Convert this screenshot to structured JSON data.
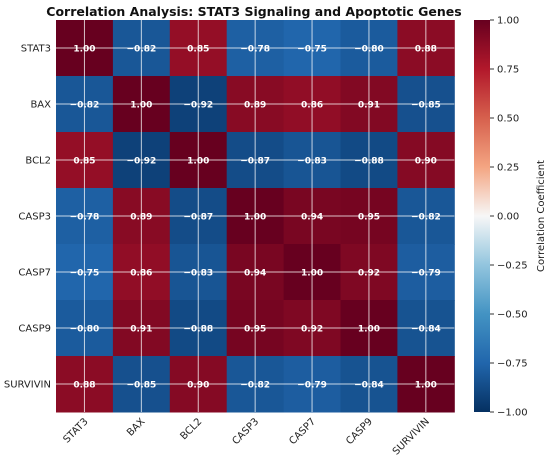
{
  "chart_data": {
    "type": "heatmap",
    "title": "Correlation Analysis: STAT3 Signaling and Apoptotic Genes",
    "rows": [
      "STAT3",
      "BAX",
      "BCL2",
      "CASP3",
      "CASP7",
      "CASP9",
      "SURVIVIN"
    ],
    "columns": [
      "STAT3",
      "BAX",
      "BCL2",
      "CASP3",
      "CASP7",
      "CASP9",
      "SURVIVIN"
    ],
    "values": [
      [
        1.0,
        -0.82,
        0.85,
        -0.78,
        -0.75,
        -0.8,
        0.88
      ],
      [
        -0.82,
        1.0,
        -0.92,
        0.89,
        0.86,
        0.91,
        -0.85
      ],
      [
        0.85,
        -0.92,
        1.0,
        -0.87,
        -0.83,
        -0.88,
        0.9
      ],
      [
        -0.78,
        0.89,
        -0.87,
        1.0,
        0.94,
        0.95,
        -0.82
      ],
      [
        -0.75,
        0.86,
        -0.83,
        0.94,
        1.0,
        0.92,
        -0.79
      ],
      [
        -0.8,
        0.91,
        -0.88,
        0.95,
        0.92,
        1.0,
        -0.84
      ],
      [
        0.88,
        -0.85,
        0.9,
        -0.82,
        -0.79,
        -0.84,
        1.0
      ]
    ],
    "value_format": "2 decimals",
    "colormap": "RdBu_r",
    "vmin": -1.0,
    "vmax": 1.0,
    "colorbar": {
      "label": "Correlation Coefficient",
      "ticks": [
        1.0,
        0.75,
        0.5,
        0.25,
        0.0,
        -0.25,
        -0.5,
        -0.75,
        -1.0
      ],
      "tick_labels": [
        "1.00",
        "0.75",
        "0.50",
        "0.25",
        "0.00",
        "−0.25",
        "−0.50",
        "−0.75",
        "−1.00"
      ],
      "placement": "right"
    },
    "grid": true,
    "xtick_rotation": "45 degrees"
  }
}
